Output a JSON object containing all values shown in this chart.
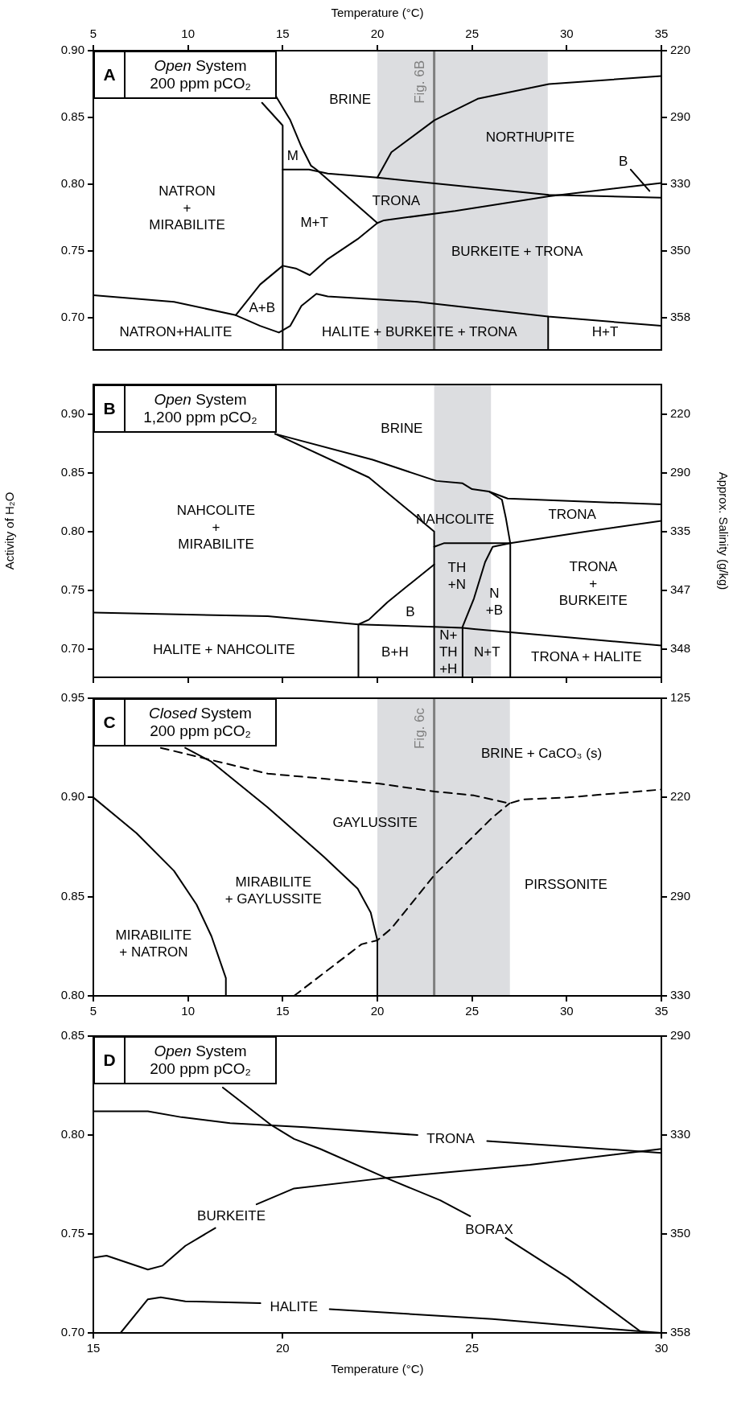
{
  "chart_data": [
    {
      "type": "line",
      "title": "A",
      "subtitle": "Open System 200 ppm pCO₂",
      "xlabel": "Temperature (°C)",
      "marker": "none",
      "legend": false,
      "xlim": [
        5,
        35
      ],
      "xticks": [
        5,
        10,
        15,
        20,
        25,
        30,
        35
      ],
      "ylim": [
        0.676,
        0.9
      ],
      "yticks": [
        {
          "value": 0.9,
          "label": "0.90"
        },
        {
          "value": 0.85,
          "label": "0.85"
        },
        {
          "value": 0.8,
          "label": "0.80"
        },
        {
          "value": 0.75,
          "label": "0.75"
        },
        {
          "value": 0.7,
          "label": "0.70"
        }
      ],
      "y2_categories": [
        "220",
        "290",
        "330",
        "350",
        "358"
      ],
      "bands": [
        {
          "axis": "x",
          "from": 20,
          "to": 29,
          "color": "#dcdde0"
        }
      ],
      "ref_lines": [
        {
          "axis": "x",
          "value": 23,
          "label": "Fig. 6B",
          "color": "#7f7f7f"
        }
      ],
      "series": [
        {
          "color": "#000000",
          "x": [
            13.91,
            15,
            15
          ],
          "values": [
            0.861,
            0.844,
            0.676
          ]
        },
        {
          "color": "#000000",
          "x": [
            14.64,
            15.4,
            15.99,
            16.49,
            16.78,
            20.0
          ],
          "values": [
            0.866,
            0.848,
            0.828,
            0.814,
            0.811,
            0.771
          ]
        },
        {
          "color": "#000000",
          "x": [
            15,
            16.39,
            17.38,
            20.0,
            29.06,
            35
          ],
          "values": [
            0.811,
            0.811,
            0.808,
            0.805,
            0.792,
            0.79
          ]
        },
        {
          "color": "#000000",
          "x": [
            20.0,
            20.74,
            23.02,
            25.3,
            29.06,
            35
          ],
          "values": [
            0.805,
            0.824,
            0.848,
            0.864,
            0.875,
            0.881
          ]
        },
        {
          "color": "#000000",
          "x": [
            12.52,
            13.81,
            15,
            15.69,
            16.43,
            17.38,
            18.96,
            20.0,
            20.35,
            24.11,
            29.06,
            35
          ],
          "values": [
            0.702,
            0.725,
            0.739,
            0.737,
            0.732,
            0.744,
            0.759,
            0.771,
            0.773,
            0.78,
            0.791,
            0.801
          ]
        },
        {
          "color": "#000000",
          "x": [
            5,
            9.26,
            12.52,
            13.81,
            14.8,
            15.4,
            15.99,
            16.78,
            17.38,
            22.13,
            29.02,
            35
          ],
          "values": [
            0.717,
            0.712,
            0.702,
            0.694,
            0.689,
            0.694,
            0.709,
            0.718,
            0.716,
            0.712,
            0.701,
            0.694
          ]
        },
        {
          "color": "#000000",
          "x": [
            29.02,
            29.02
          ],
          "values": [
            0.701,
            0.676
          ]
        },
        {
          "color": "#000000",
          "x": [
            33.38,
            34.37
          ],
          "values": [
            0.811,
            0.795
          ]
        }
      ],
      "annotations": [
        "BRINE",
        "NORTHUPITE",
        "M",
        "NATRON\n+\nMIRABILITE",
        "TRONA",
        "M+T",
        "BURKEITE + TRONA",
        "B",
        "A+B",
        "NATRON+HALITE",
        "HALITE + BURKEITE + TRONA",
        "H+T"
      ]
    },
    {
      "type": "line",
      "title": "B",
      "subtitle": "Open System 1,200 ppm pCO₂",
      "ylabel": "Activity of H₂O",
      "y2label": "Approx. Salinity (g/kg)",
      "marker": "none",
      "legend": false,
      "tick_labels": "y",
      "xlim": [
        5,
        35
      ],
      "xticks": [
        5,
        10,
        15,
        20,
        25,
        30,
        35
      ],
      "ylim": [
        0.676,
        0.925
      ],
      "yticks": [
        {
          "value": 0.9,
          "label": "0.90"
        },
        {
          "value": 0.85,
          "label": "0.85"
        },
        {
          "value": 0.8,
          "label": "0.80"
        },
        {
          "value": 0.75,
          "label": "0.75"
        },
        {
          "value": 0.7,
          "label": "0.70"
        }
      ],
      "y2_categories": [
        "220",
        "290",
        "335",
        "347",
        "348"
      ],
      "bands": [
        {
          "axis": "x",
          "from": 23,
          "to": 26,
          "color": "#dcdde0"
        }
      ],
      "series": [
        {
          "color": "#000000",
          "x": [
            14.6,
            19.75,
            23.12,
            24.5,
            25.0,
            25.89,
            26.88,
            35
          ],
          "values": [
            0.883,
            0.861,
            0.843,
            0.841,
            0.836,
            0.834,
            0.828,
            0.823
          ]
        },
        {
          "color": "#000000",
          "x": [
            14.6,
            19.55,
            23,
            23
          ],
          "values": [
            0.883,
            0.846,
            0.8,
            0.676
          ]
        },
        {
          "color": "#000000",
          "x": [
            25.89,
            26.58,
            26.78,
            27.02,
            27.02
          ],
          "values": [
            0.834,
            0.827,
            0.812,
            0.79,
            0.676
          ]
        },
        {
          "color": "#000000",
          "x": [
            23,
            23.51,
            26.09,
            27.02,
            31.04,
            35
          ],
          "values": [
            0.787,
            0.79,
            0.79,
            0.79,
            0.8,
            0.809
          ]
        },
        {
          "color": "#000000",
          "x": [
            27.02,
            26.09,
            25.69,
            25.1,
            24.5,
            24.5
          ],
          "values": [
            0.79,
            0.787,
            0.774,
            0.743,
            0.719,
            0.676
          ]
        },
        {
          "color": "#000000",
          "x": [
            23,
            20.54,
            19.55,
            19.0,
            19.0
          ],
          "values": [
            0.772,
            0.74,
            0.725,
            0.721,
            0.676
          ]
        },
        {
          "color": "#000000",
          "x": [
            5,
            14.21,
            19,
            23,
            24.5,
            25.1,
            30.05,
            35
          ],
          "values": [
            0.731,
            0.728,
            0.721,
            0.719,
            0.718,
            0.717,
            0.71,
            0.703
          ]
        }
      ],
      "annotations": [
        "BRINE",
        "NAHCOLITE\n+\nMIRABILITE",
        "NAHCOLITE",
        "TRONA",
        "TH\n+N",
        "N\n+B",
        "TRONA\n+\nBURKEITE",
        "B",
        "HALITE + NAHCOLITE",
        "B+H",
        "N+\nTH\n+H",
        "N+T",
        "TRONA + HALITE"
      ]
    },
    {
      "type": "line",
      "title": "C",
      "subtitle": "Closed System 200 ppm pCO₂",
      "marker": "none",
      "legend": false,
      "xlim": [
        5,
        35
      ],
      "xticks": [
        5,
        10,
        15,
        20,
        25,
        30,
        35
      ],
      "ylim": [
        0.8,
        0.95
      ],
      "yticks": [
        0.95,
        {
          "value": 0.9,
          "label": "0.90"
        },
        0.85,
        {
          "value": 0.8,
          "label": "0.80"
        }
      ],
      "y2_categories": [
        "125",
        "220",
        "290",
        "330"
      ],
      "bands": [
        {
          "axis": "x",
          "from": 20,
          "to": 27,
          "color": "#dcdde0"
        }
      ],
      "ref_lines": [
        {
          "axis": "x",
          "value": 23,
          "label": "Fig. 6c",
          "color": "#7f7f7f"
        }
      ],
      "series": [
        {
          "color": "#000000",
          "x": [
            5,
            7.28,
            9.26,
            10.45,
            11.24,
            12,
            12
          ],
          "values": [
            0.9,
            0.882,
            0.863,
            0.846,
            0.83,
            0.809,
            0.8
          ]
        },
        {
          "color": "#000000",
          "x": [
            9.85,
            11.24,
            14.21,
            17.18,
            18.96,
            19.65,
            19.95,
            20,
            20
          ],
          "values": [
            0.925,
            0.918,
            0.895,
            0.87,
            0.854,
            0.842,
            0.83,
            0.828,
            0.8
          ]
        },
        {
          "color": "#000000",
          "line_style": "dashed",
          "x": [
            8.56,
            14.21,
            20.05,
            23.02,
            25.1,
            26.98,
            27.67,
            30.05,
            35
          ],
          "values": [
            0.925,
            0.912,
            0.907,
            0.903,
            0.901,
            0.897,
            0.899,
            0.9,
            0.904
          ]
        },
        {
          "color": "#000000",
          "line_style": "dashed",
          "x": [
            15.6,
            19.16,
            20,
            20.74,
            23.02,
            26.09,
            26.98
          ],
          "values": [
            0.8,
            0.826,
            0.828,
            0.834,
            0.861,
            0.89,
            0.897
          ]
        }
      ],
      "annotations": [
        "BRINE + CaCO₃ (s)",
        "GAYLUSSITE",
        "MIRABILITE\n+ GAYLUSSITE",
        "PIRSSONITE",
        "MIRABILITE\n+ NATRON"
      ]
    },
    {
      "type": "line",
      "title": "D",
      "subtitle": "Open System 200 ppm pCO₂",
      "xlabel": "Temperature (°C)",
      "marker": "none",
      "legend": false,
      "xlim": [
        15,
        30
      ],
      "xticks": [
        15,
        20,
        25,
        30
      ],
      "ylim": [
        0.7,
        0.85
      ],
      "yticks": [
        0.85,
        {
          "value": 0.8,
          "label": "0.80"
        },
        0.75,
        {
          "value": 0.7,
          "label": "0.70"
        }
      ],
      "y2_categories": [
        "290",
        "330",
        "350",
        "358"
      ],
      "series": [
        {
          "color": "#000000",
          "x": [
            18.42,
            19.7,
            20.3,
            20.99,
            22.77,
            24.16,
            24.95,
            25.45,
            25.89,
            27.52,
            29.5
          ],
          "values": [
            0.824,
            0.805,
            0.798,
            0.793,
            0.778,
            0.767,
            0.759,
            null,
            0.748,
            0.728,
            0.7
          ]
        },
        {
          "color": "#000000",
          "x": [
            15,
            16.44,
            17.33,
            18.61,
            20.59,
            23.56,
            24.45,
            25.4,
            30
          ],
          "values": [
            0.812,
            0.812,
            0.809,
            0.806,
            0.804,
            0.8,
            null,
            0.797,
            0.791
          ]
        },
        {
          "color": "#000000",
          "x": [
            15,
            15.35,
            16.44,
            16.83,
            17.43,
            18.22,
            18.7,
            19.31,
            20.3,
            22.57,
            26.53,
            30
          ],
          "values": [
            0.738,
            0.739,
            0.732,
            0.734,
            0.744,
            0.753,
            null,
            0.765,
            0.773,
            0.778,
            0.785,
            0.793
          ]
        },
        {
          "color": "#000000",
          "x": [
            15.72,
            16.44,
            16.78,
            17.43,
            19.41,
            20.3,
            21.24,
            25.54,
            29.31,
            30
          ],
          "values": [
            0.7,
            0.717,
            0.718,
            0.716,
            0.715,
            null,
            0.712,
            0.707,
            0.701,
            0.7
          ]
        }
      ],
      "annotations": [
        "TRONA",
        "BURKEITE",
        "BORAX",
        "HALITE"
      ]
    }
  ]
}
